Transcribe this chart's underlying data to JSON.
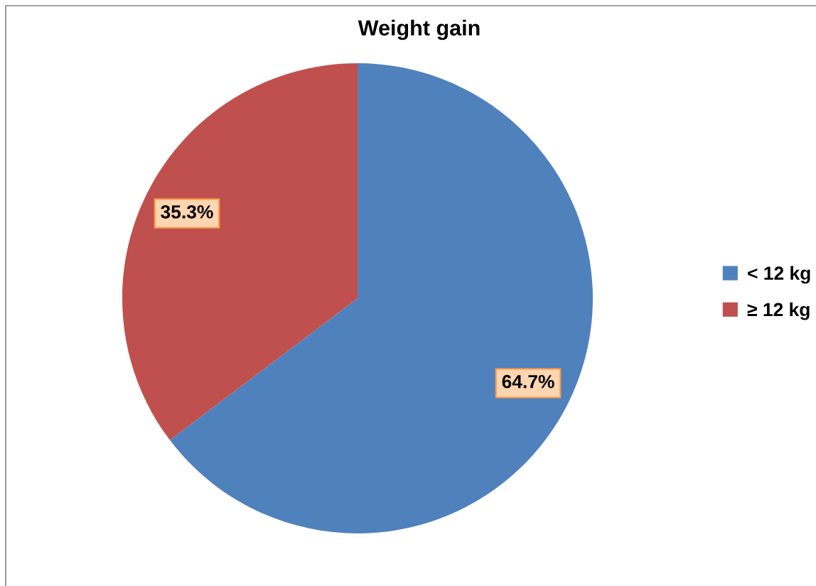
{
  "chart_data": {
    "type": "pie",
    "title": "Weight gain",
    "categories": [
      "< 12 kg",
      "≥ 12 kg"
    ],
    "values": [
      64.7,
      35.3
    ],
    "colors": [
      "#4f81bd",
      "#c0504d"
    ],
    "value_labels": [
      "64.7%",
      "35.3%"
    ],
    "legend": "right"
  }
}
